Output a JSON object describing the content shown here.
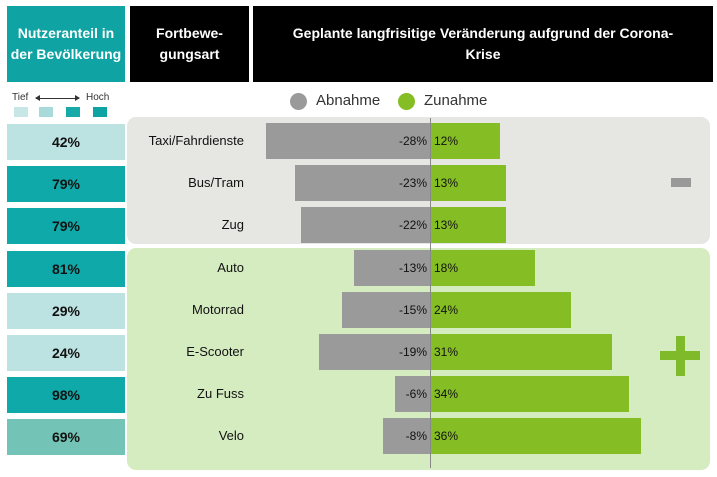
{
  "headers": {
    "nutzeranteil": "Nutzeranteil in der Bevölkerung",
    "fortbewegungsart": "Fortbewe-gungsart",
    "geplant": "Geplante langfrisitige Veränderung aufgrund der Corona-Krise"
  },
  "scale": {
    "low": "Tief",
    "high": "Hoch",
    "colors": [
      "#c7e6e6",
      "#a9dada",
      "#18a9a9",
      "#10a3a3"
    ]
  },
  "legend": {
    "decrease": "Abnahme",
    "increase": "Zunahme",
    "decrease_color": "#9a9a9a",
    "increase_color": "#85bd24"
  },
  "colors": {
    "share_low": "#bde2e2",
    "share_high": "#10a9a9",
    "share_mid": "#73c4b6"
  },
  "chart_data": {
    "type": "bar",
    "categories": [
      "Taxi/Fahrdienste",
      "Bus/Tram",
      "Zug",
      "Auto",
      "Motorrad",
      "E-Scooter",
      "Zu Fuss",
      "Velo"
    ],
    "series": [
      {
        "name": "Abnahme",
        "values": [
          -28,
          -23,
          -22,
          -13,
          -15,
          -19,
          -6,
          -8
        ],
        "labels": [
          "-28%",
          "-23%",
          "-22%",
          "-13%",
          "-15%",
          "-19%",
          "-6%",
          "-8%"
        ]
      },
      {
        "name": "Zunahme",
        "values": [
          12,
          13,
          13,
          18,
          24,
          31,
          34,
          36
        ],
        "labels": [
          "12%",
          "13%",
          "13%",
          "18%",
          "24%",
          "31%",
          "34%",
          "36%"
        ]
      }
    ],
    "user_share": [
      "42%",
      "79%",
      "79%",
      "81%",
      "29%",
      "24%",
      "98%",
      "69%"
    ],
    "user_share_level": [
      "low",
      "high",
      "high",
      "high",
      "low",
      "low",
      "high",
      "mid"
    ],
    "groups": [
      {
        "symbol": "minus",
        "categories": [
          "Taxi/Fahrdienste",
          "Bus/Tram",
          "Zug"
        ]
      },
      {
        "symbol": "plus",
        "categories": [
          "Auto",
          "Motorrad",
          "E-Scooter",
          "Zu Fuss",
          "Velo"
        ]
      }
    ]
  }
}
